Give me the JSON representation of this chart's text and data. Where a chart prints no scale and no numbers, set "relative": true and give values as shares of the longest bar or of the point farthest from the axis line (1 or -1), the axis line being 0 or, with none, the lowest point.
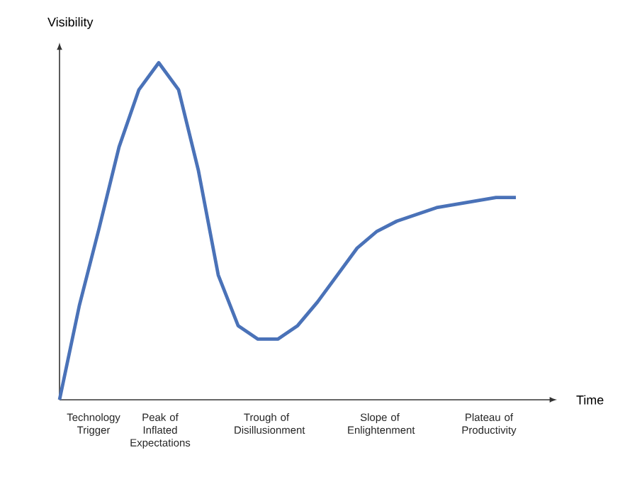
{
  "chart_data": {
    "type": "line",
    "relative": true,
    "xlabel": "Time",
    "ylabel": "Visibility",
    "categories": [
      null,
      null,
      null,
      null,
      null,
      null,
      null,
      null,
      null,
      null,
      null,
      null,
      null,
      null,
      null,
      null,
      null,
      null,
      null,
      null,
      null,
      null,
      null,
      null
    ],
    "annotations": [
      "Technology Trigger",
      "Peak of Inflated Expectations",
      "Trough of Disillusionment",
      "Slope of Enlightenment",
      "Plateau of Productivity"
    ],
    "series": [
      {
        "color": "#4a72b8",
        "values": [
          0,
          0.28,
          0.51,
          0.75,
          0.92,
          1.0,
          0.92,
          0.68,
          0.37,
          0.22,
          0.18,
          0.18,
          0.22,
          0.29,
          0.37,
          0.45,
          0.5,
          0.53,
          0.55,
          0.57,
          0.58,
          0.59,
          0.6,
          0.6
        ]
      }
    ],
    "grid": false,
    "marker": "none",
    "line_style": "solid"
  }
}
